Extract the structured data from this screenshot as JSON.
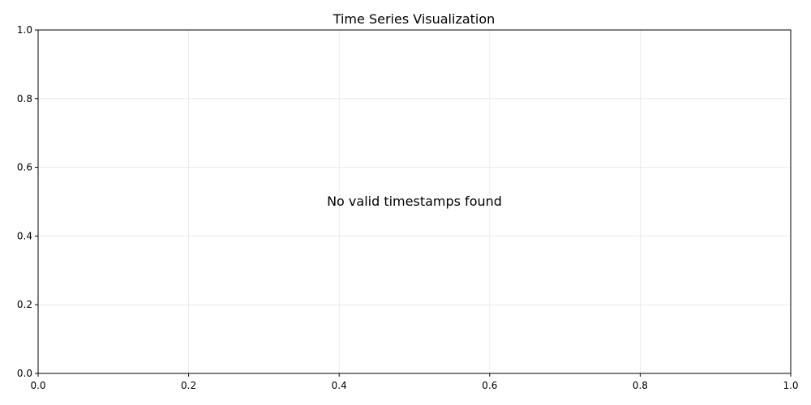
{
  "chart_data": {
    "type": "line",
    "title": "Time Series Visualization",
    "xlabel": "",
    "ylabel": "",
    "xlim": [
      0,
      1
    ],
    "ylim": [
      0,
      1
    ],
    "x_ticks": [
      "0.0",
      "0.2",
      "0.4",
      "0.6",
      "0.8",
      "1.0"
    ],
    "y_ticks": [
      "0.0",
      "0.2",
      "0.4",
      "0.6",
      "0.8",
      "1.0"
    ],
    "grid": true,
    "series": [],
    "annotations": [
      {
        "text": "No valid timestamps found",
        "x": 0.5,
        "y": 0.5
      }
    ]
  },
  "colors": {
    "axis": "#000000",
    "grid": "#e6e6e6",
    "background": "#ffffff"
  }
}
